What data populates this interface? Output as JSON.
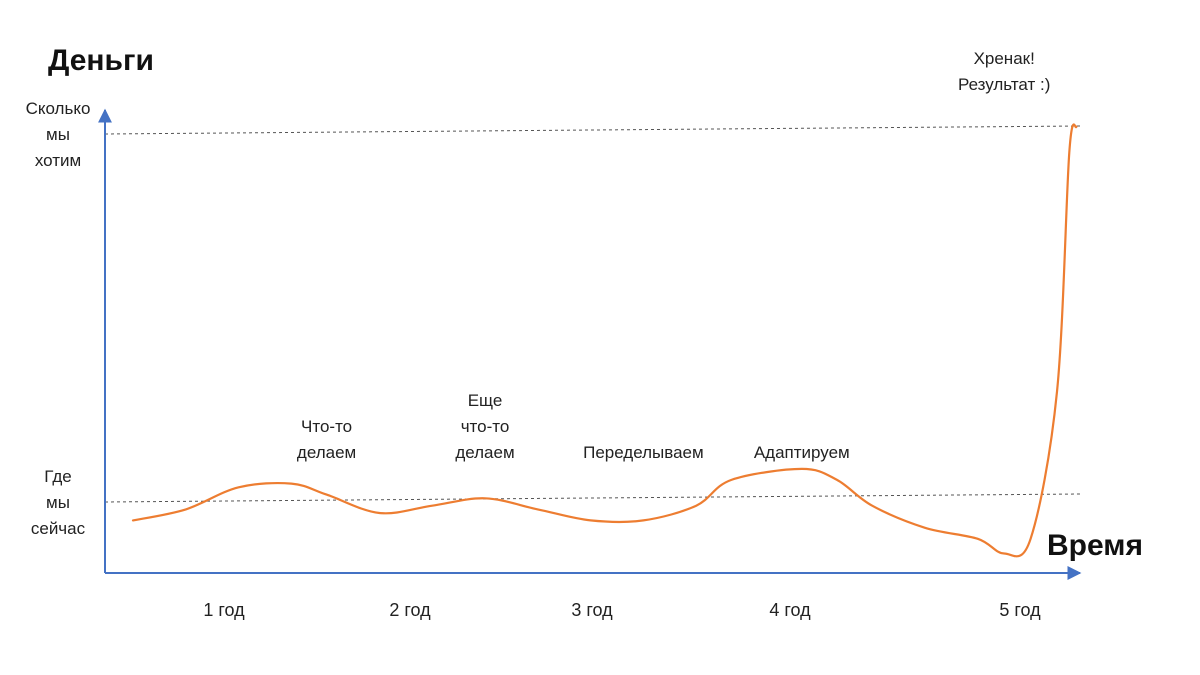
{
  "chart_data": {
    "type": "line",
    "ylabel": "Деньги",
    "xlabel": "Время",
    "y_levels": [
      {
        "name": "now",
        "lines": [
          "Где",
          "мы",
          "сейчас"
        ],
        "value": 0
      },
      {
        "name": "target",
        "lines": [
          "Сколько",
          "мы",
          "хотим"
        ],
        "value": 100
      }
    ],
    "x_ticks": [
      "1 год",
      "2 год",
      "3 год",
      "4 год",
      "5 год"
    ],
    "xlim": [
      0,
      5.5
    ],
    "ylim": [
      -20,
      130
    ],
    "reference_lines": [
      "now",
      "target"
    ],
    "grid": false,
    "series": [
      {
        "color": "#ED7D31",
        "points": [
          [
            0.0,
            -5
          ],
          [
            0.3,
            -2
          ],
          [
            0.6,
            4
          ],
          [
            0.9,
            5
          ],
          [
            1.1,
            2
          ],
          [
            1.4,
            -3
          ],
          [
            1.7,
            -1
          ],
          [
            2.0,
            1
          ],
          [
            2.3,
            -2
          ],
          [
            2.6,
            -5
          ],
          [
            2.9,
            -5
          ],
          [
            3.2,
            -1
          ],
          [
            3.4,
            6
          ],
          [
            3.8,
            9
          ],
          [
            4.0,
            6
          ],
          [
            4.2,
            -1
          ],
          [
            4.5,
            -7
          ],
          [
            4.8,
            -10
          ],
          [
            4.95,
            -14
          ],
          [
            5.1,
            -10
          ],
          [
            5.25,
            30
          ],
          [
            5.32,
            95
          ],
          [
            5.36,
            102
          ]
        ]
      }
    ],
    "annotations": [
      {
        "lines": [
          "Что-то",
          "делаем"
        ],
        "x": 1.1,
        "y": 12
      },
      {
        "lines": [
          "Еще",
          "что-то",
          "делаем"
        ],
        "x": 2.0,
        "y": 12
      },
      {
        "lines": [
          "Переделываем"
        ],
        "x": 2.9,
        "y": 12
      },
      {
        "lines": [
          "Адаптируем"
        ],
        "x": 3.8,
        "y": 12
      },
      {
        "lines": [
          "Хренак!",
          "Результат :)"
        ],
        "x": 4.95,
        "y": 112
      }
    ]
  }
}
